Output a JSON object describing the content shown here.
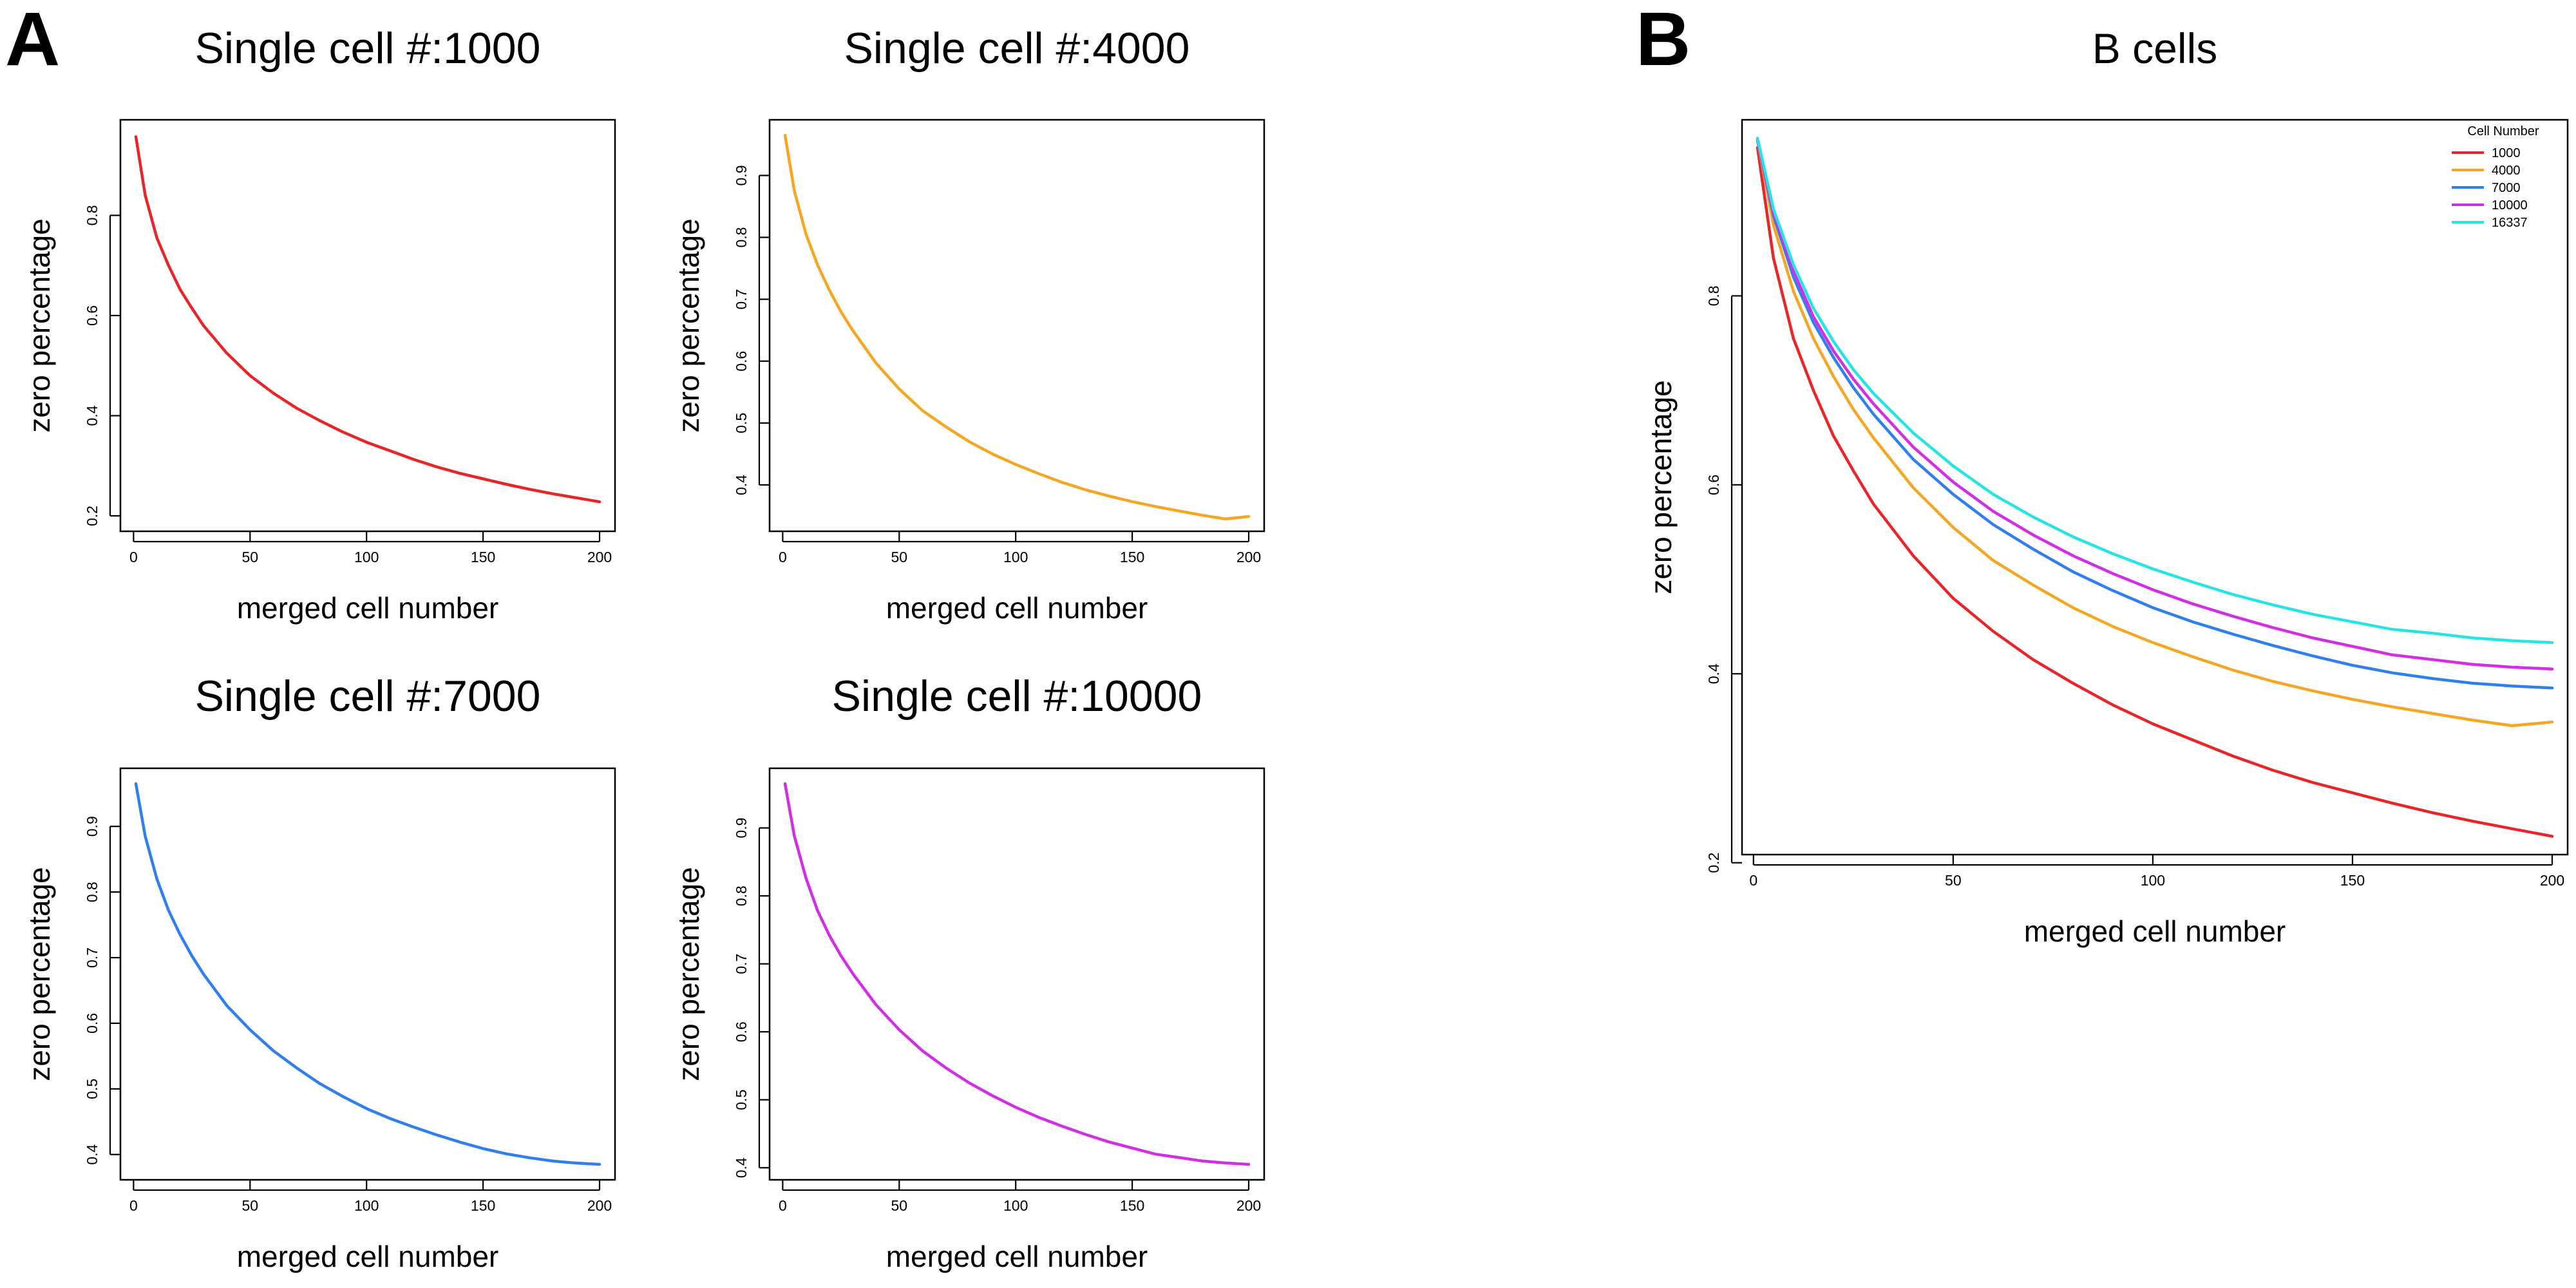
{
  "panel_labels": {
    "a": "A",
    "b": "B"
  },
  "chart_data": [
    {
      "type": "line",
      "title": "Single cell #:1000",
      "xlabel": "merged cell number",
      "ylabel": "zero percentage",
      "xlim": [
        1,
        200
      ],
      "ylim": [
        0.2,
        0.96
      ],
      "xticks": [
        0,
        50,
        100,
        150,
        200
      ],
      "yticks": [
        0.2,
        0.4,
        0.6,
        0.8
      ],
      "grid": false,
      "series": [
        {
          "color": "#e8262a",
          "x": [
            1,
            5,
            10,
            15,
            20,
            25,
            30,
            40,
            50,
            60,
            70,
            80,
            90,
            100,
            110,
            120,
            130,
            140,
            150,
            160,
            170,
            180,
            190,
            200
          ],
          "y": [
            0.957,
            0.84,
            0.755,
            0.7,
            0.652,
            0.615,
            0.58,
            0.525,
            0.48,
            0.445,
            0.415,
            0.39,
            0.367,
            0.347,
            0.33,
            0.313,
            0.298,
            0.285,
            0.274,
            0.263,
            0.253,
            0.244,
            0.236,
            0.228
          ]
        }
      ]
    },
    {
      "type": "line",
      "title": "Single cell #:4000",
      "xlabel": "merged cell number",
      "ylabel": "zero percentage",
      "xlim": [
        1,
        200
      ],
      "ylim": [
        0.35,
        0.965
      ],
      "xticks": [
        0,
        50,
        100,
        150,
        200
      ],
      "yticks": [
        0.4,
        0.5,
        0.6,
        0.7,
        0.8,
        0.9
      ],
      "grid": false,
      "series": [
        {
          "color": "#f5a623",
          "x": [
            1,
            5,
            10,
            15,
            20,
            25,
            30,
            40,
            50,
            60,
            70,
            80,
            90,
            100,
            110,
            120,
            130,
            140,
            150,
            160,
            170,
            180,
            190,
            200
          ],
          "y": [
            0.965,
            0.875,
            0.805,
            0.755,
            0.715,
            0.68,
            0.65,
            0.597,
            0.555,
            0.52,
            0.494,
            0.47,
            0.45,
            0.433,
            0.418,
            0.404,
            0.392,
            0.382,
            0.373,
            0.365,
            0.358,
            0.351,
            0.345,
            0.349
          ]
        }
      ]
    },
    {
      "type": "line",
      "title": "Single cell #:7000",
      "xlabel": "merged cell number",
      "ylabel": "zero percentage",
      "xlim": [
        1,
        200
      ],
      "ylim": [
        0.385,
        0.965
      ],
      "xticks": [
        0,
        50,
        100,
        150,
        200
      ],
      "yticks": [
        0.4,
        0.5,
        0.6,
        0.7,
        0.8,
        0.9
      ],
      "grid": false,
      "series": [
        {
          "color": "#2f7ff0",
          "x": [
            1,
            5,
            10,
            15,
            20,
            25,
            30,
            40,
            50,
            60,
            70,
            80,
            90,
            100,
            110,
            120,
            130,
            140,
            150,
            160,
            170,
            180,
            190,
            200
          ],
          "y": [
            0.965,
            0.885,
            0.82,
            0.772,
            0.735,
            0.703,
            0.675,
            0.627,
            0.59,
            0.558,
            0.532,
            0.508,
            0.488,
            0.47,
            0.455,
            0.442,
            0.43,
            0.419,
            0.409,
            0.401,
            0.395,
            0.39,
            0.387,
            0.385
          ]
        }
      ]
    },
    {
      "type": "line",
      "title": "Single cell #:10000",
      "xlabel": "merged cell number",
      "ylabel": "zero percentage",
      "xlim": [
        1,
        200
      ],
      "ylim": [
        0.405,
        0.965
      ],
      "xticks": [
        0,
        50,
        100,
        150,
        200
      ],
      "yticks": [
        0.4,
        0.5,
        0.6,
        0.7,
        0.8,
        0.9
      ],
      "grid": false,
      "series": [
        {
          "color": "#d12ee6",
          "x": [
            1,
            5,
            10,
            15,
            20,
            25,
            30,
            40,
            50,
            60,
            70,
            80,
            90,
            100,
            110,
            120,
            130,
            140,
            150,
            160,
            170,
            180,
            190,
            200
          ],
          "y": [
            0.965,
            0.888,
            0.826,
            0.778,
            0.742,
            0.712,
            0.686,
            0.64,
            0.603,
            0.572,
            0.547,
            0.525,
            0.506,
            0.489,
            0.474,
            0.461,
            0.449,
            0.438,
            0.429,
            0.42,
            0.415,
            0.41,
            0.407,
            0.405
          ]
        }
      ]
    },
    {
      "type": "line",
      "title": "B cells",
      "xlabel": "merged cell number",
      "ylabel": "zero percentage",
      "xlim": [
        1,
        200
      ],
      "ylim": [
        0.225,
        0.97
      ],
      "xticks": [
        0,
        50,
        100,
        150,
        200
      ],
      "yticks": [
        0.2,
        0.4,
        0.6,
        0.8
      ],
      "grid": false,
      "legend": {
        "title": "Cell Number",
        "position": "top-right"
      },
      "series": [
        {
          "name": "1000",
          "color": "#e8262a",
          "x": [
            1,
            5,
            10,
            15,
            20,
            25,
            30,
            40,
            50,
            60,
            70,
            80,
            90,
            100,
            110,
            120,
            130,
            140,
            150,
            160,
            170,
            180,
            190,
            200
          ],
          "y": [
            0.957,
            0.84,
            0.755,
            0.7,
            0.652,
            0.615,
            0.58,
            0.525,
            0.48,
            0.445,
            0.415,
            0.39,
            0.367,
            0.347,
            0.33,
            0.313,
            0.298,
            0.285,
            0.274,
            0.263,
            0.253,
            0.244,
            0.236,
            0.228
          ]
        },
        {
          "name": "4000",
          "color": "#f5a623",
          "x": [
            1,
            5,
            10,
            15,
            20,
            25,
            30,
            40,
            50,
            60,
            70,
            80,
            90,
            100,
            110,
            120,
            130,
            140,
            150,
            160,
            170,
            180,
            190,
            200
          ],
          "y": [
            0.965,
            0.875,
            0.805,
            0.755,
            0.715,
            0.68,
            0.65,
            0.597,
            0.555,
            0.52,
            0.494,
            0.47,
            0.45,
            0.433,
            0.418,
            0.404,
            0.392,
            0.382,
            0.373,
            0.365,
            0.358,
            0.351,
            0.345,
            0.349
          ]
        },
        {
          "name": "7000",
          "color": "#2f7ff0",
          "x": [
            1,
            5,
            10,
            15,
            20,
            25,
            30,
            40,
            50,
            60,
            70,
            80,
            90,
            100,
            110,
            120,
            130,
            140,
            150,
            160,
            170,
            180,
            190,
            200
          ],
          "y": [
            0.965,
            0.885,
            0.82,
            0.772,
            0.735,
            0.703,
            0.675,
            0.627,
            0.59,
            0.558,
            0.532,
            0.508,
            0.488,
            0.47,
            0.455,
            0.442,
            0.43,
            0.419,
            0.409,
            0.401,
            0.395,
            0.39,
            0.387,
            0.385
          ]
        },
        {
          "name": "10000",
          "color": "#d12ee6",
          "x": [
            1,
            5,
            10,
            15,
            20,
            25,
            30,
            40,
            50,
            60,
            70,
            80,
            90,
            100,
            110,
            120,
            130,
            140,
            150,
            160,
            170,
            180,
            190,
            200
          ],
          "y": [
            0.965,
            0.888,
            0.826,
            0.778,
            0.742,
            0.712,
            0.686,
            0.64,
            0.603,
            0.572,
            0.547,
            0.525,
            0.506,
            0.489,
            0.474,
            0.461,
            0.449,
            0.438,
            0.429,
            0.42,
            0.415,
            0.41,
            0.407,
            0.405
          ]
        },
        {
          "name": "16337",
          "color": "#27e4e4",
          "x": [
            1,
            5,
            10,
            15,
            20,
            25,
            30,
            40,
            50,
            60,
            70,
            80,
            90,
            100,
            110,
            120,
            130,
            140,
            150,
            160,
            170,
            180,
            190,
            200
          ],
          "y": [
            0.967,
            0.892,
            0.833,
            0.787,
            0.752,
            0.722,
            0.697,
            0.655,
            0.62,
            0.59,
            0.566,
            0.545,
            0.527,
            0.511,
            0.497,
            0.484,
            0.473,
            0.463,
            0.455,
            0.447,
            0.443,
            0.438,
            0.435,
            0.433
          ]
        }
      ]
    }
  ]
}
